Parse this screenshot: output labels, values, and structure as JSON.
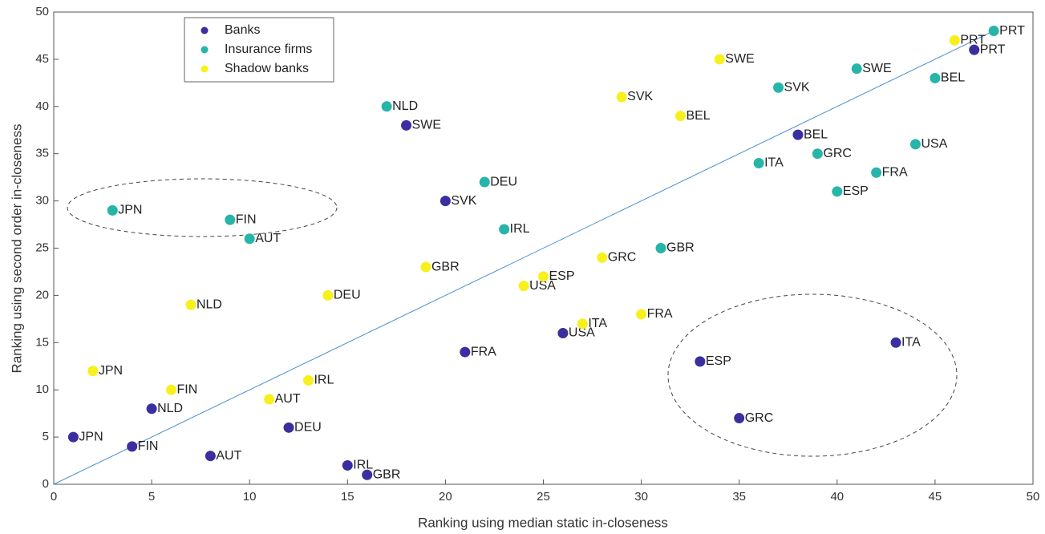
{
  "chart_data": {
    "type": "scatter",
    "x_label": "Ranking using median static in-closeness",
    "y_label": "Ranking using second order in-closeness",
    "xlim": [
      0,
      50
    ],
    "ylim": [
      0,
      50
    ],
    "xticks": [
      0,
      5,
      10,
      15,
      20,
      25,
      30,
      35,
      40,
      45,
      50
    ],
    "yticks": [
      0,
      5,
      10,
      15,
      20,
      25,
      30,
      35,
      40,
      45,
      50
    ],
    "legend": "upper left",
    "series": [
      {
        "name": "Banks",
        "color": "#3b2f9f",
        "x": [
          1,
          4,
          5,
          8,
          12,
          15,
          16,
          18,
          20,
          21,
          26,
          33,
          35,
          38,
          43,
          47
        ],
        "values": [
          5,
          4,
          8,
          3,
          6,
          2,
          1,
          38,
          30,
          14,
          16,
          13,
          7,
          37,
          15,
          46
        ],
        "labels": [
          "JPN",
          "FIN",
          "NLD",
          "AUT",
          "DEU",
          "IRL",
          "GBR",
          "SWE",
          "SVK",
          "FRA",
          "USA",
          "ESP",
          "GRC",
          "BEL",
          "ITA",
          "PRT"
        ]
      },
      {
        "name": "Insurance firms",
        "color": "#26b5a8",
        "x": [
          3,
          9,
          10,
          17,
          22,
          23,
          31,
          36,
          37,
          39,
          40,
          41,
          42,
          44,
          45,
          48
        ],
        "values": [
          29,
          28,
          26,
          40,
          32,
          27,
          25,
          34,
          42,
          35,
          31,
          44,
          33,
          36,
          43,
          48
        ],
        "labels": [
          "JPN",
          "FIN",
          "AUT",
          "NLD",
          "DEU",
          "IRL",
          "GBR",
          "ITA",
          "SVK",
          "GRC",
          "ESP",
          "SWE",
          "FRA",
          "USA",
          "BEL",
          "PRT"
        ]
      },
      {
        "name": "Shadow banks",
        "color": "#f7f01c",
        "x": [
          2,
          6,
          7,
          11,
          13,
          14,
          19,
          24,
          25,
          27,
          28,
          29,
          30,
          32,
          34,
          46
        ],
        "values": [
          12,
          10,
          19,
          9,
          11,
          20,
          23,
          21,
          22,
          17,
          24,
          41,
          18,
          39,
          45,
          47
        ],
        "labels": [
          "JPN",
          "FIN",
          "NLD",
          "AUT",
          "IRL",
          "DEU",
          "GBR",
          "USA",
          "ESP",
          "ITA",
          "GRC",
          "SVK",
          "FRA",
          "BEL",
          "SWE",
          "PRT"
        ]
      }
    ]
  }
}
